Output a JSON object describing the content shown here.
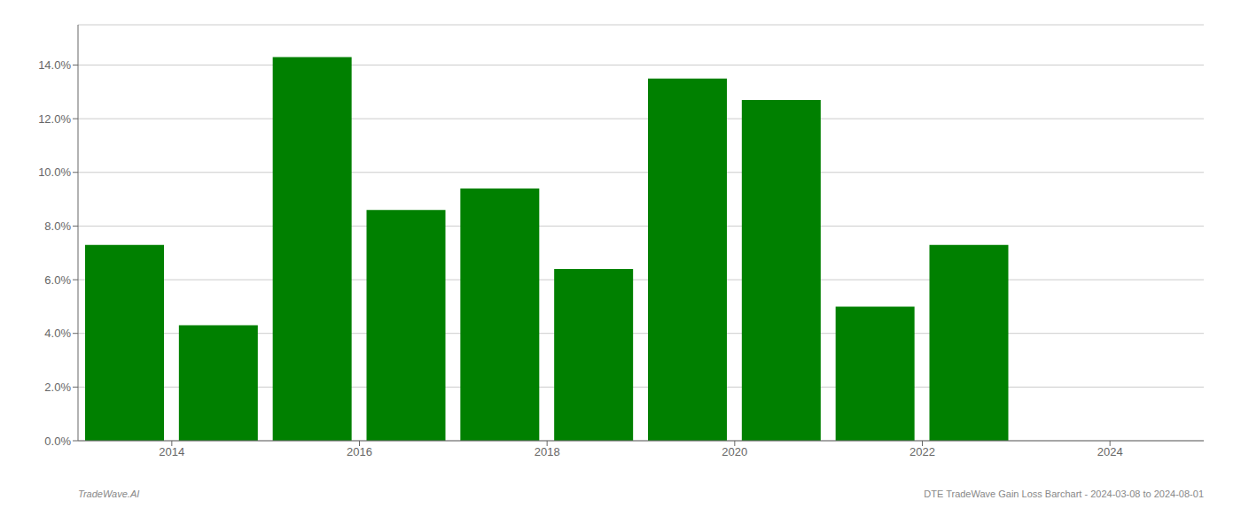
{
  "chart_data": {
    "type": "bar",
    "x": [
      2013,
      2014,
      2015,
      2016,
      2017,
      2018,
      2019,
      2020,
      2021,
      2022
    ],
    "values": [
      0.073,
      0.043,
      0.143,
      0.086,
      0.094,
      0.064,
      0.135,
      0.127,
      0.05,
      0.073
    ],
    "color": "#008000",
    "xlim": [
      2012.5,
      2024.5
    ],
    "xticks": [
      {
        "value": 2013.5,
        "label": "2014"
      },
      {
        "value": 2015.5,
        "label": "2016"
      },
      {
        "value": 2017.5,
        "label": "2018"
      },
      {
        "value": 2019.5,
        "label": "2020"
      },
      {
        "value": 2021.5,
        "label": "2022"
      },
      {
        "value": 2023.5,
        "label": "2024"
      }
    ],
    "ylim": [
      0.0,
      0.155
    ],
    "yticks": [
      {
        "value": 0.0,
        "label": "0.0%"
      },
      {
        "value": 0.02,
        "label": "2.0%"
      },
      {
        "value": 0.04,
        "label": "4.0%"
      },
      {
        "value": 0.06,
        "label": "6.0%"
      },
      {
        "value": 0.08,
        "label": "8.0%"
      },
      {
        "value": 0.1,
        "label": "10.0%"
      },
      {
        "value": 0.12,
        "label": "12.0%"
      },
      {
        "value": 0.14,
        "label": "14.0%"
      }
    ],
    "grid": true,
    "annotations": [
      "TradeWave.AI",
      "DTE TradeWave Gain Loss Barchart - 2024-03-08 to 2024-08-01"
    ]
  }
}
